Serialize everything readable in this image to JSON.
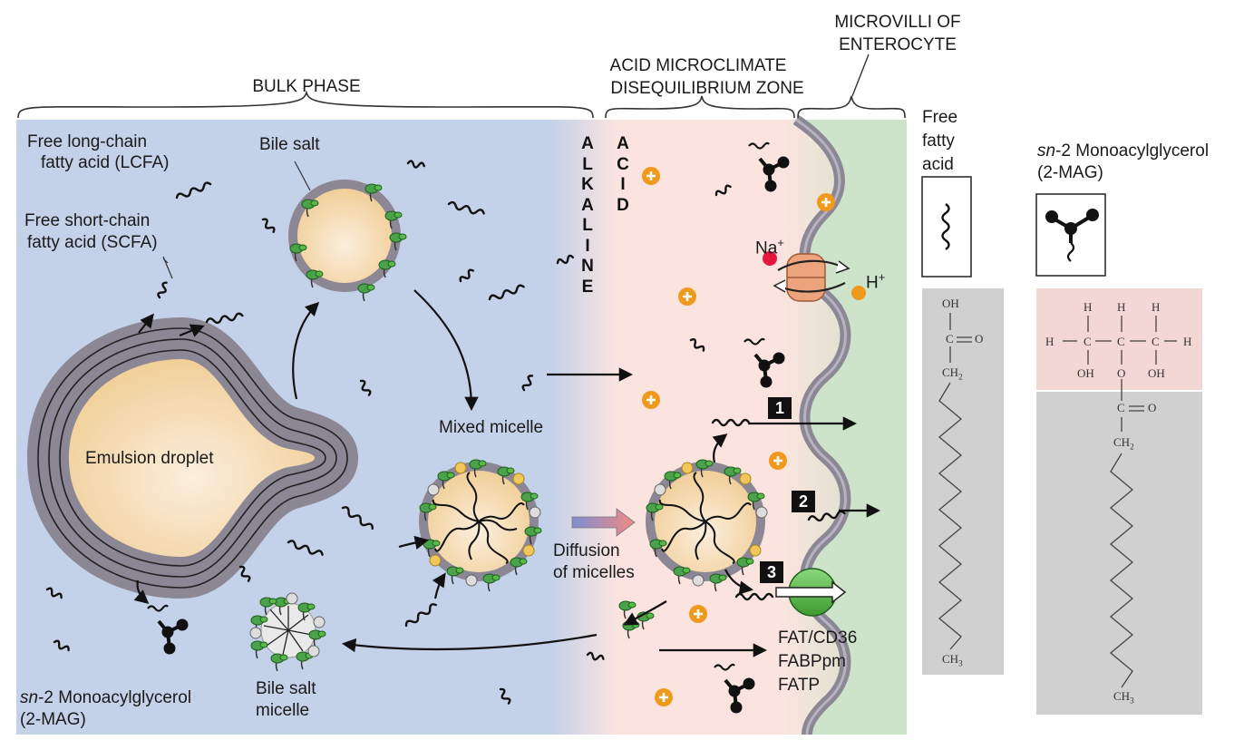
{
  "headers": {
    "bulk_phase": "BULK PHASE",
    "acid_zone_line1": "ACID MICROCLIMATE",
    "acid_zone_line2": "DISEQUILIBRIUM ZONE",
    "microvilli_line1": "MICROVILLI OF",
    "microvilli_line2": "ENTEROCYTE"
  },
  "vertical_words": {
    "alkaline": [
      "A",
      "L",
      "K",
      "A",
      "L",
      "I",
      "N",
      "E"
    ],
    "acid": [
      "A",
      "C",
      "I",
      "D"
    ]
  },
  "labels": {
    "lcfa_line1": "Free long-chain",
    "lcfa_line2": "fatty acid (LCFA)",
    "scfa_line1": "Free short-chain",
    "scfa_line2": "fatty acid (SCFA)",
    "bile_salt": "Bile salt",
    "emulsion_droplet": "Emulsion droplet",
    "mixed_micelle": "Mixed micelle",
    "diffusion_line1": "Diffusion",
    "diffusion_line2": "of micelles",
    "bile_salt_micelle_line1": "Bile salt",
    "bile_salt_micelle_line2": "micelle",
    "mag_italic": "sn",
    "mag_rest": "-2 Monoacylglycerol",
    "mag_abbrev": "(2-MAG)",
    "na": "Na",
    "na_sup": "+",
    "h": "H",
    "h_sup": "+",
    "transporter_1": "FAT/CD36",
    "transporter_2": "FABPpm",
    "transporter_3": "FATP"
  },
  "steps": [
    "1",
    "2",
    "3"
  ],
  "right_panels": {
    "ffa_title_line1": "Free",
    "ffa_title_line2": "fatty",
    "ffa_title_line3": "acid",
    "mag_title_italic": "sn",
    "mag_title_rest": "-2 Monoacylglycerol",
    "mag_title_abbrev": "(2-MAG)"
  },
  "chem": {
    "oh": "OH",
    "c": "C",
    "o": "O",
    "ch2": "CH",
    "ch2_sub": "2",
    "ch3": "CH",
    "ch3_sub": "3",
    "h": "H"
  },
  "colors": {
    "bulk_phase_bg": "#c3d1e9",
    "acid_zone_bg": "#fbe4df",
    "membrane_bg": "#cde4cb",
    "membrane": "#8c8794",
    "proton_marker": "#ef9a1c",
    "sodium_dot": "#e5173f",
    "transporter_green": "#58b947",
    "exchanger": "#eda47c",
    "droplet_core": "#f6d9a8",
    "chem_pink": "#f3d7d5",
    "chem_grey": "#d0d0d0"
  }
}
